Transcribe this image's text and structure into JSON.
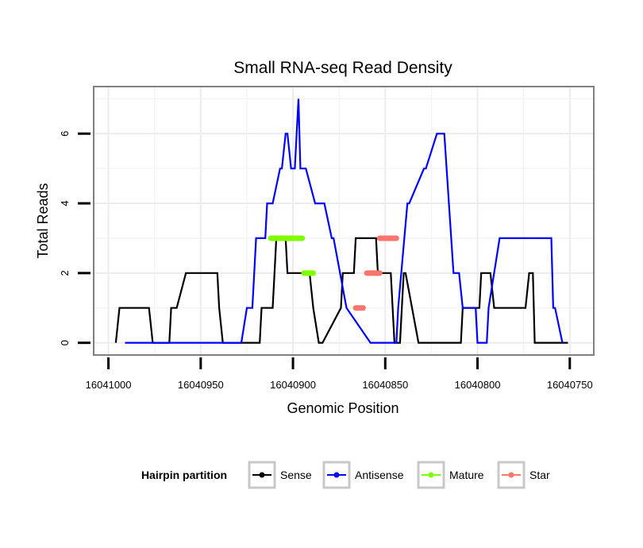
{
  "chart_data": {
    "type": "line",
    "title": "Small RNA-seq Read Density",
    "xlabel": "Genomic Position",
    "ylabel": "Total Reads",
    "xlim": [
      16041008,
      16040737
    ],
    "ylim": [
      -0.35,
      7.35
    ],
    "x_reversed": true,
    "x_ticks": [
      16041000,
      16040950,
      16040900,
      16040850,
      16040800,
      16040750
    ],
    "x_tick_labels": [
      "16041000",
      "16040950",
      "16040900",
      "16040850",
      "16040800",
      "16040750"
    ],
    "y_ticks": [
      0,
      2,
      4,
      6
    ],
    "y_tick_labels": [
      "0",
      "2",
      "4",
      "6"
    ],
    "grid": true,
    "legend": {
      "title": "Hairpin partition",
      "position": "bottom",
      "entries": [
        {
          "name": "Sense",
          "color": "#000000"
        },
        {
          "name": "Antisense",
          "color": "#0000ff"
        },
        {
          "name": "Mature",
          "color": "#80ff00"
        },
        {
          "name": "Star",
          "color": "#f8766d"
        }
      ]
    },
    "series": [
      {
        "name": "Sense",
        "color": "#000000",
        "style": "line",
        "x": [
          16040996,
          16040994,
          16040978,
          16040976,
          16040967,
          16040966,
          16040963,
          16040958,
          16040941,
          16040940,
          16040938,
          16040918,
          16040917,
          16040911,
          16040909,
          16040904,
          16040903,
          16040891,
          16040889,
          16040886,
          16040884,
          16040874,
          16040873,
          16040867,
          16040866,
          16040855,
          16040854,
          16040847,
          16040846,
          16040845,
          16040842,
          16040841,
          16040840,
          16040839,
          16040832,
          16040809,
          16040808,
          16040799,
          16040798,
          16040793,
          16040791,
          16040774,
          16040772,
          16040770,
          16040769,
          16040751
        ],
        "y": [
          0,
          1,
          1,
          0,
          0,
          1,
          1,
          2,
          2,
          1,
          0,
          0,
          1,
          1,
          3,
          3,
          2,
          2,
          1,
          0,
          0,
          1,
          2,
          2,
          3,
          3,
          2,
          2,
          1,
          0,
          0,
          1,
          2,
          2,
          0,
          0,
          1,
          1,
          2,
          2,
          1,
          1,
          2,
          2,
          0,
          0
        ]
      },
      {
        "name": "Antisense",
        "color": "#0000ff",
        "style": "line",
        "x": [
          16040991,
          16040950,
          16040928,
          16040925,
          16040922,
          16040920,
          16040915,
          16040914,
          16040911,
          16040907,
          16040906,
          16040904,
          16040903,
          16040901,
          16040899,
          16040897,
          16040896,
          16040893,
          16040888,
          16040883,
          16040879,
          16040878,
          16040871,
          16040858,
          16040857,
          16040844,
          16040843,
          16040838,
          16040837,
          16040829,
          16040828,
          16040822,
          16040818,
          16040813,
          16040812,
          16040810,
          16040808,
          16040801,
          16040800,
          16040795,
          16040794,
          16040788,
          16040779,
          16040778,
          16040777,
          16040760,
          16040759,
          16040758,
          16040754
        ],
        "y": [
          0,
          0,
          0,
          1,
          1,
          3,
          3,
          4,
          4,
          5,
          5,
          6,
          6,
          5,
          5,
          7,
          5,
          5,
          4,
          4,
          3,
          3,
          1,
          0,
          0,
          0,
          1,
          4,
          4,
          5,
          5,
          6,
          6,
          2,
          2,
          2,
          1,
          1,
          0,
          0,
          1,
          3,
          3,
          3,
          3,
          3,
          1,
          1,
          0
        ]
      },
      {
        "name": "Mature",
        "color": "#80ff00",
        "style": "segments",
        "segments": [
          {
            "x": [
              16040912,
              16040895
            ],
            "y": 3
          },
          {
            "x": [
              16040894,
              16040889
            ],
            "y": 2
          }
        ]
      },
      {
        "name": "Star",
        "color": "#f8766d",
        "style": "segments",
        "segments": [
          {
            "x": [
              16040866,
              16040862
            ],
            "y": 1
          },
          {
            "x": [
              16040860,
              16040853
            ],
            "y": 2
          },
          {
            "x": [
              16040853,
              16040844
            ],
            "y": 3
          }
        ]
      }
    ]
  }
}
